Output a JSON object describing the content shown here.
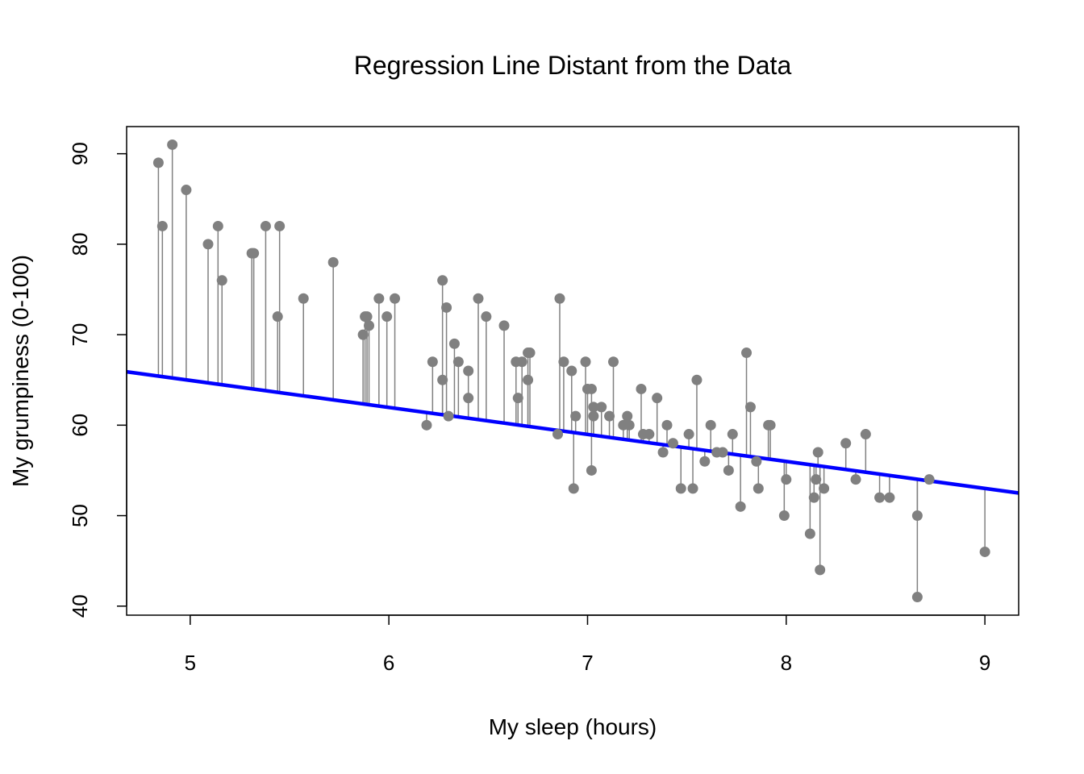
{
  "chart_data": {
    "type": "scatter",
    "title": "Regression Line Distant from the Data",
    "xlabel": "My sleep (hours)",
    "ylabel": "My grumpiness (0-100)",
    "xlim": [
      4.68,
      9.17
    ],
    "ylim": [
      39,
      93
    ],
    "x_ticks": [
      5,
      6,
      7,
      8,
      9
    ],
    "y_ticks": [
      40,
      50,
      60,
      70,
      80,
      90
    ],
    "x_tick_labels": [
      "5",
      "6",
      "7",
      "8",
      "9"
    ],
    "y_tick_labels": [
      "40",
      "50",
      "60",
      "70",
      "80",
      "90"
    ],
    "grid": false,
    "legend": null,
    "regression_line": {
      "color": "#0000ff",
      "x": [
        4.68,
        9.17
      ],
      "y": [
        65.9,
        52.5
      ]
    },
    "residual_color": "#808080",
    "point_color": "#808080",
    "series": [
      {
        "name": "observations",
        "x": [
          4.84,
          4.86,
          4.91,
          4.98,
          5.09,
          5.14,
          5.16,
          5.31,
          5.32,
          5.38,
          5.44,
          5.45,
          5.57,
          5.72,
          5.87,
          5.88,
          5.89,
          5.9,
          5.95,
          5.99,
          6.03,
          6.19,
          6.22,
          6.27,
          6.27,
          6.29,
          6.3,
          6.33,
          6.35,
          6.4,
          6.4,
          6.45,
          6.49,
          6.58,
          6.64,
          6.65,
          6.67,
          6.7,
          6.7,
          6.71,
          6.85,
          6.86,
          6.88,
          6.92,
          6.93,
          6.94,
          6.99,
          7.0,
          7.02,
          7.02,
          7.03,
          7.03,
          7.07,
          7.11,
          7.13,
          7.18,
          7.2,
          7.21,
          7.27,
          7.28,
          7.31,
          7.35,
          7.38,
          7.4,
          7.43,
          7.47,
          7.51,
          7.53,
          7.55,
          7.59,
          7.62,
          7.65,
          7.68,
          7.71,
          7.73,
          7.77,
          7.8,
          7.82,
          7.85,
          7.86,
          7.91,
          7.92,
          7.99,
          8.0,
          8.12,
          8.14,
          8.15,
          8.16,
          8.17,
          8.19,
          8.3,
          8.35,
          8.4,
          8.47,
          8.52,
          8.66,
          8.66,
          8.72,
          9.0
        ],
        "y": [
          89,
          82,
          91,
          86,
          80,
          82,
          76,
          79,
          79,
          82,
          72,
          82,
          74,
          78,
          70,
          72,
          72,
          71,
          74,
          72,
          74,
          60,
          67,
          76,
          65,
          73,
          61,
          69,
          67,
          63,
          66,
          74,
          72,
          71,
          67,
          63,
          67,
          65,
          68,
          68,
          59,
          74,
          67,
          66,
          53,
          61,
          67,
          64,
          64,
          55,
          61,
          62,
          62,
          61,
          67,
          60,
          61,
          60,
          64,
          59,
          59,
          63,
          57,
          60,
          58,
          53,
          59,
          53,
          65,
          56,
          60,
          57,
          57,
          55,
          59,
          51,
          68,
          62,
          56,
          53,
          60,
          60,
          50,
          54,
          48,
          52,
          54,
          57,
          44,
          53,
          58,
          54,
          59,
          52,
          52,
          50,
          41,
          54,
          46
        ]
      }
    ]
  }
}
